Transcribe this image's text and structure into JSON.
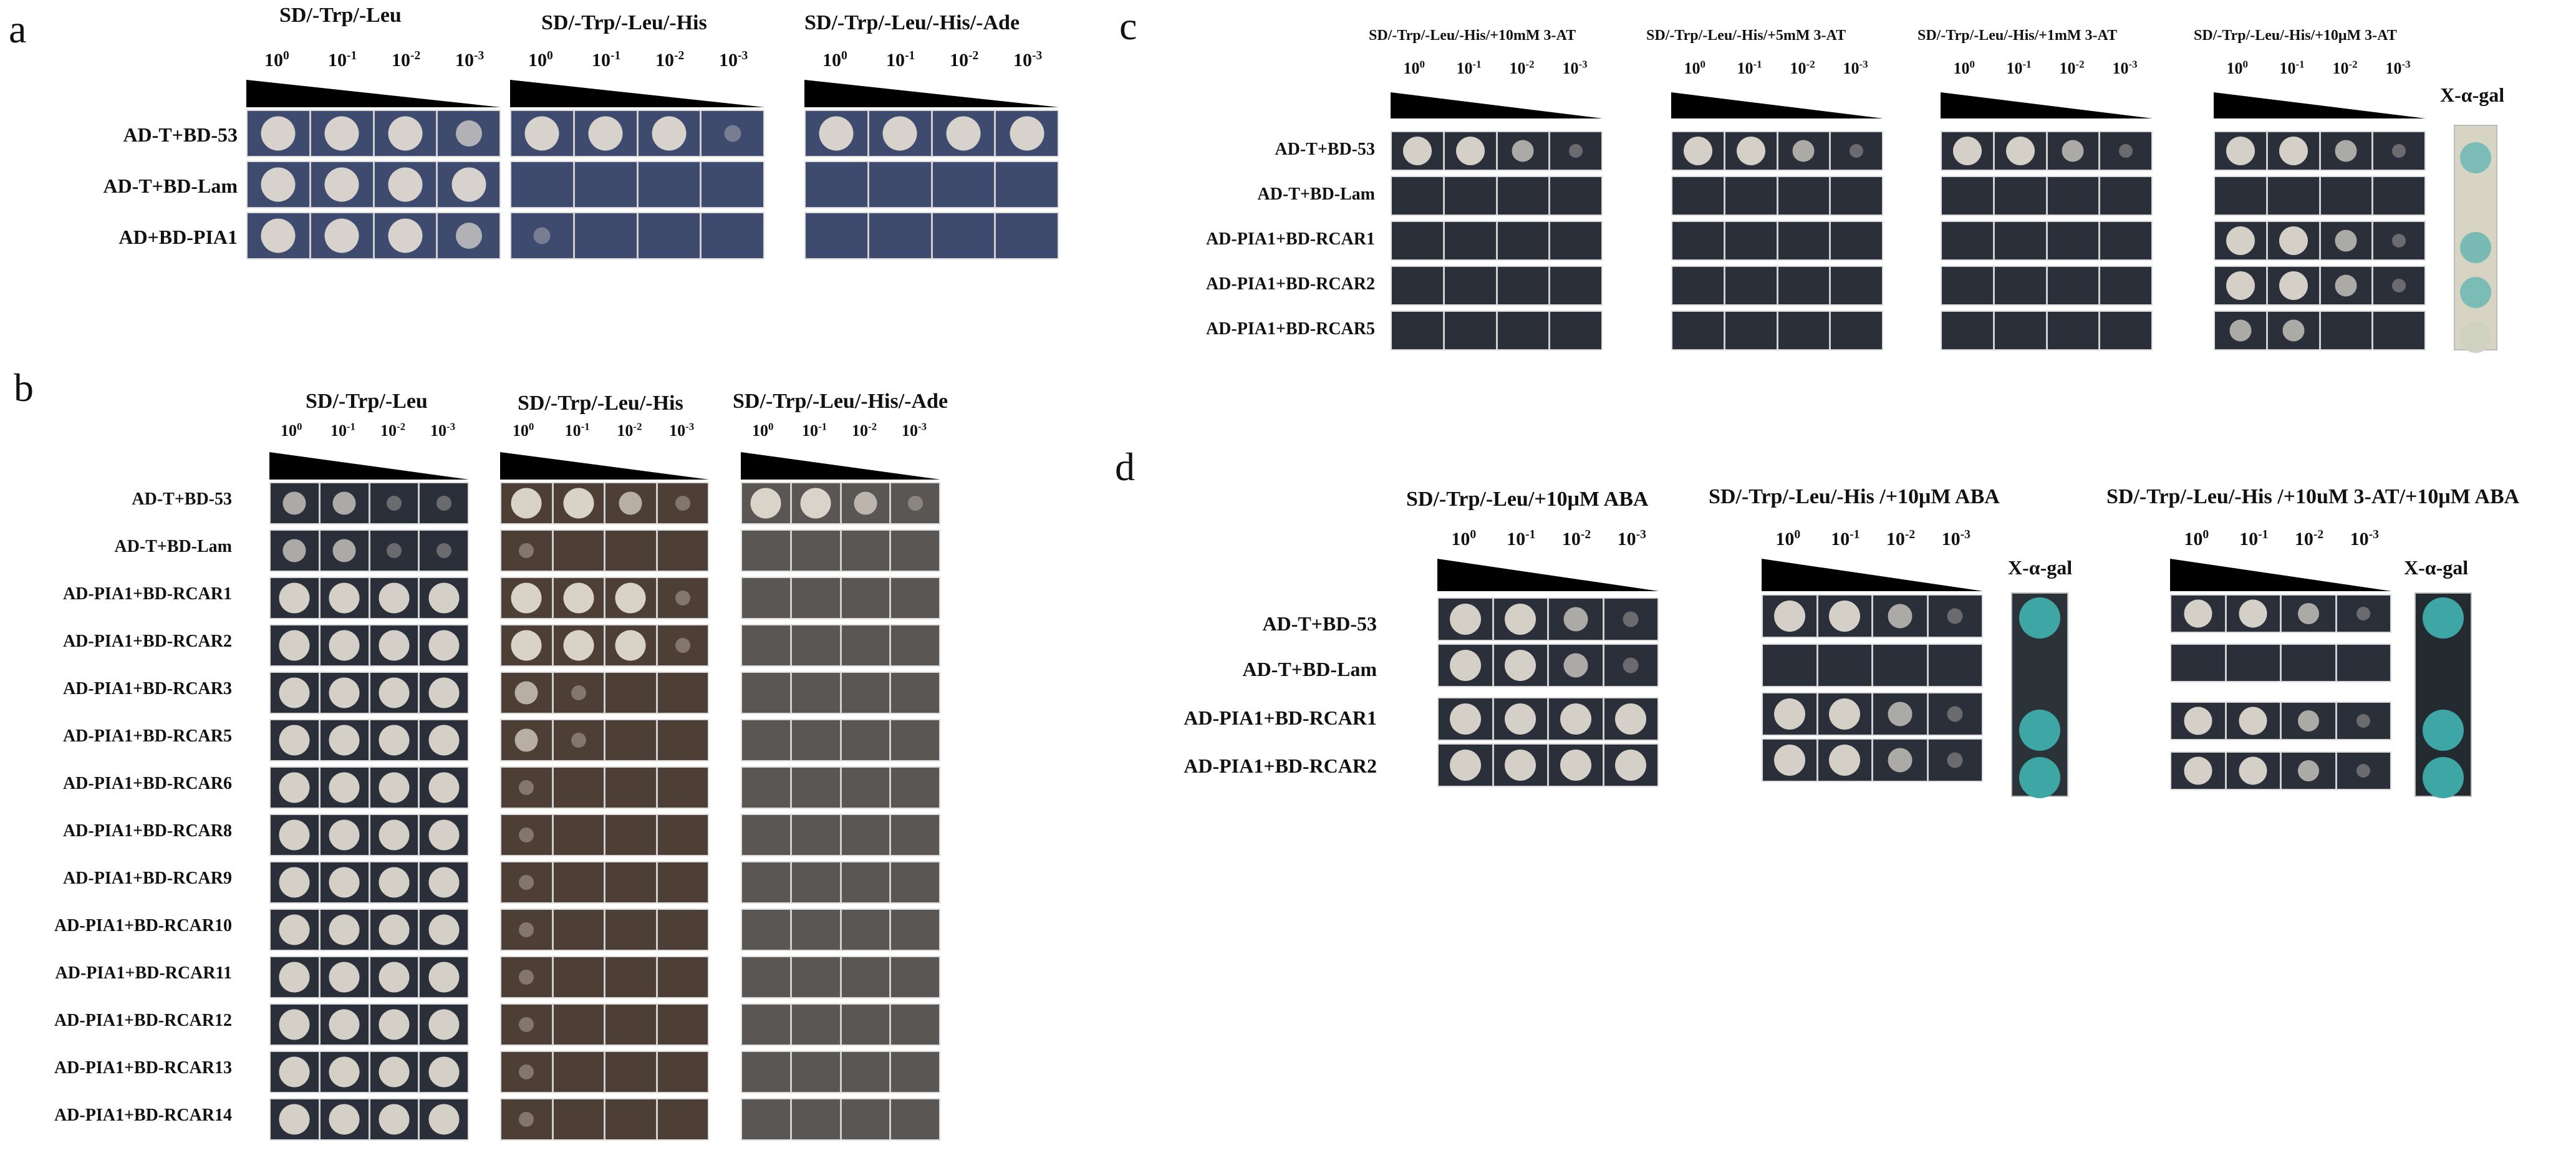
{
  "dilutions": [
    "10",
    "10",
    "10",
    "10"
  ],
  "dilution_exponents": [
    "0",
    "-1",
    "-2",
    "-3"
  ],
  "panel_a": {
    "label": "a",
    "conditions": [
      "SD/-Trp/-Leu",
      "SD/-Trp/-Leu/-His",
      "SD/-Trp/-Leu/-His/-Ade"
    ],
    "rows": [
      "AD-T+BD-53",
      "AD-T+BD-Lam",
      "AD+BD-PIA1"
    ]
  },
  "panel_b": {
    "label": "b",
    "conditions": [
      "SD/-Trp/-Leu",
      "SD/-Trp/-Leu/-His",
      "SD/-Trp/-Leu/-His/-Ade"
    ],
    "rows": [
      "AD-T+BD-53",
      "AD-T+BD-Lam",
      "AD-PIA1+BD-RCAR1",
      "AD-PIA1+BD-RCAR2",
      "AD-PIA1+BD-RCAR3",
      "AD-PIA1+BD-RCAR5",
      "AD-PIA1+BD-RCAR6",
      "AD-PIA1+BD-RCAR8",
      "AD-PIA1+BD-RCAR9",
      "AD-PIA1+BD-RCAR10",
      "AD-PIA1+BD-RCAR11",
      "AD-PIA1+BD-RCAR12",
      "AD-PIA1+BD-RCAR13",
      "AD-PIA1+BD-RCAR14"
    ]
  },
  "panel_c": {
    "label": "c",
    "conditions": [
      "SD/-Trp/-Leu/-His/+10mM 3-AT",
      "SD/-Trp/-Leu/-His/+5mM 3-AT",
      "SD/-Trp/-Leu/-His/+1mM 3-AT",
      "SD/-Trp/-Leu/-His/+10μM 3-AT"
    ],
    "rows": [
      "AD-T+BD-53",
      "AD-T+BD-Lam",
      "AD-PIA1+BD-RCAR1",
      "AD-PIA1+BD-RCAR2",
      "AD-PIA1+BD-RCAR5"
    ],
    "xgal": "X-α-gal"
  },
  "panel_d": {
    "label": "d",
    "conditions": [
      "SD/-Trp/-Leu/+10μM ABA",
      "SD/-Trp/-Leu/-His /+10μM ABA",
      "SD/-Trp/-Leu/-His /+10uM 3-AT/+10μM ABA"
    ],
    "rows": [
      "AD-T+BD-53",
      "AD-T+BD-Lam",
      "AD-PIA1+BD-RCAR1",
      "AD-PIA1+BD-RCAR2"
    ],
    "xgal": "X-α-gal"
  },
  "colors": {
    "plate_blue": "#3e4a6e",
    "plate_dark": "#2a2f3a",
    "plate_brown": "#4e3f36",
    "plate_grey": "#5a5654",
    "colony": "#e4ded4",
    "xgal_blue": "#3fa6a6",
    "wedge": "#000000"
  }
}
